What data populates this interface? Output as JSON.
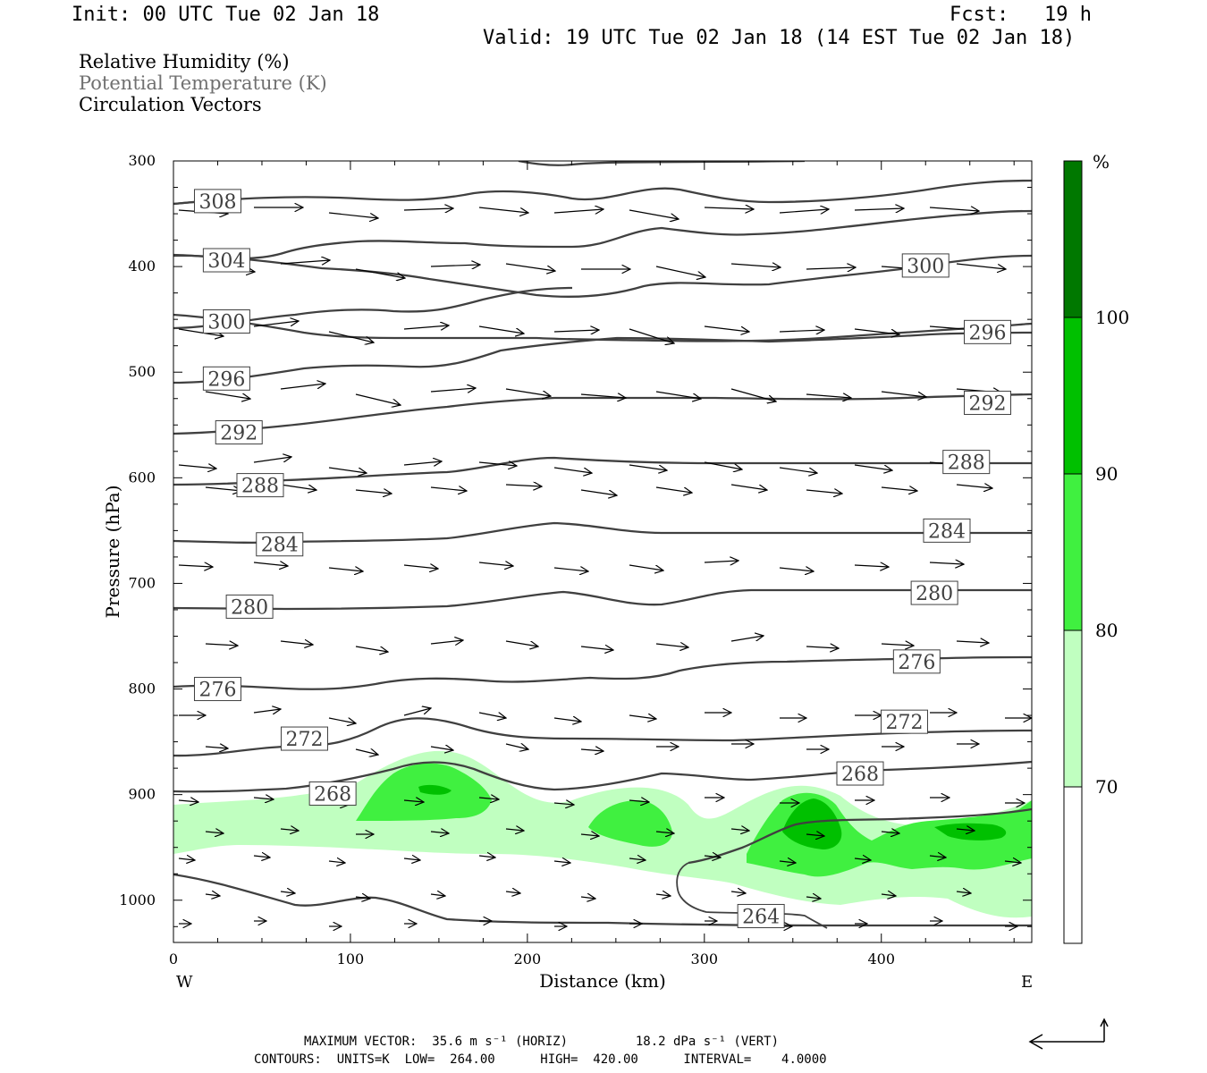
{
  "header": {
    "init": "Init: 00 UTC Tue 02 Jan 18",
    "fcst": "Fcst:   19 h",
    "valid": "Valid: 19 UTC Tue 02 Jan 18 (14 EST Tue 02 Jan 18)"
  },
  "fields": {
    "rh": "Relative Humidity (%)",
    "theta": "Potential Temperature (K)",
    "vectors": "Circulation Vectors"
  },
  "colors": {
    "rh70": "#c0ffc0",
    "rh80": "#40f040",
    "rh90": "#00c000",
    "rh100": "#007800",
    "contour": "#404040"
  },
  "footer": {
    "max_vector": "MAXIMUM VECTOR:  35.6 m s⁻¹ (HORIZ)         18.2 dPa s⁻¹ (VERT)",
    "contours": "CONTOURS:  UNITS=K  LOW=  264.00      HIGH=  420.00      INTERVAL=    4.0000"
  },
  "chart_data": {
    "type": "cross-section",
    "xlabel": "Distance (km)",
    "ylabel": "Pressure (hPa)",
    "xlim": [
      0,
      485
    ],
    "ylim": [
      1040,
      300
    ],
    "y_scale": "linear",
    "x_ticks": [
      "0",
      "100",
      "200",
      "300",
      "400"
    ],
    "y_ticks": [
      "300",
      "400",
      "500",
      "600",
      "700",
      "800",
      "900",
      "1000"
    ],
    "x_end_left": "W",
    "x_end_right": "E",
    "colorbar": {
      "unit": "%",
      "levels": [
        "70",
        "80",
        "90",
        "100"
      ]
    },
    "theta_labels": [
      {
        "text": "308",
        "x": 25,
        "p": 338
      },
      {
        "text": "304",
        "x": 30,
        "p": 394
      },
      {
        "text": "300",
        "x": 30,
        "p": 452
      },
      {
        "text": "296",
        "x": 30,
        "p": 506
      },
      {
        "text": "292",
        "x": 37,
        "p": 557
      },
      {
        "text": "288",
        "x": 49,
        "p": 607
      },
      {
        "text": "284",
        "x": 60,
        "p": 663
      },
      {
        "text": "280",
        "x": 43,
        "p": 722
      },
      {
        "text": "276",
        "x": 25,
        "p": 800
      },
      {
        "text": "272",
        "x": 74,
        "p": 847
      },
      {
        "text": "268",
        "x": 90,
        "p": 899
      },
      {
        "text": "264",
        "x": 332,
        "p": 1015
      },
      {
        "text": "300",
        "x": 425,
        "p": 399
      },
      {
        "text": "296",
        "x": 460,
        "p": 462
      },
      {
        "text": "292",
        "x": 460,
        "p": 529
      },
      {
        "text": "288",
        "x": 448,
        "p": 585
      },
      {
        "text": "284",
        "x": 437,
        "p": 650
      },
      {
        "text": "280",
        "x": 430,
        "p": 709
      },
      {
        "text": "276",
        "x": 420,
        "p": 774
      },
      {
        "text": "272",
        "x": 413,
        "p": 831
      },
      {
        "text": "268",
        "x": 388,
        "p": 880
      }
    ]
  }
}
